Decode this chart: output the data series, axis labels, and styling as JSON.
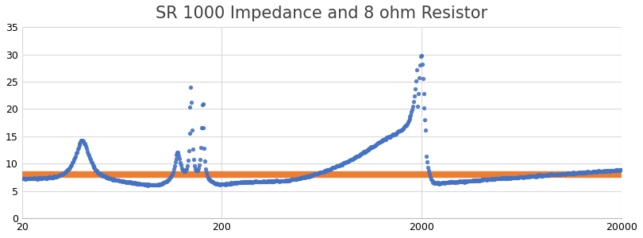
{
  "title": "SR 1000 Impedance and 8 ohm Resistor",
  "title_fontsize": 15,
  "xlim": [
    20,
    20000
  ],
  "ylim": [
    0,
    35
  ],
  "yticks": [
    0,
    5,
    10,
    15,
    20,
    25,
    30,
    35
  ],
  "xticks": [
    20,
    200,
    2000,
    20000
  ],
  "xticklabels": [
    "20",
    "200",
    "2000",
    "20000"
  ],
  "resistor_value": 8.0,
  "blue_color": "#4472C4",
  "orange_color": "#ED7D31",
  "bg_color": "#FFFFFF",
  "grid_color": "#D9D9D9",
  "resistor_linewidth": 6,
  "impedance_markersize": 3.8,
  "figsize": [
    8.1,
    3.0
  ],
  "dpi": 100
}
